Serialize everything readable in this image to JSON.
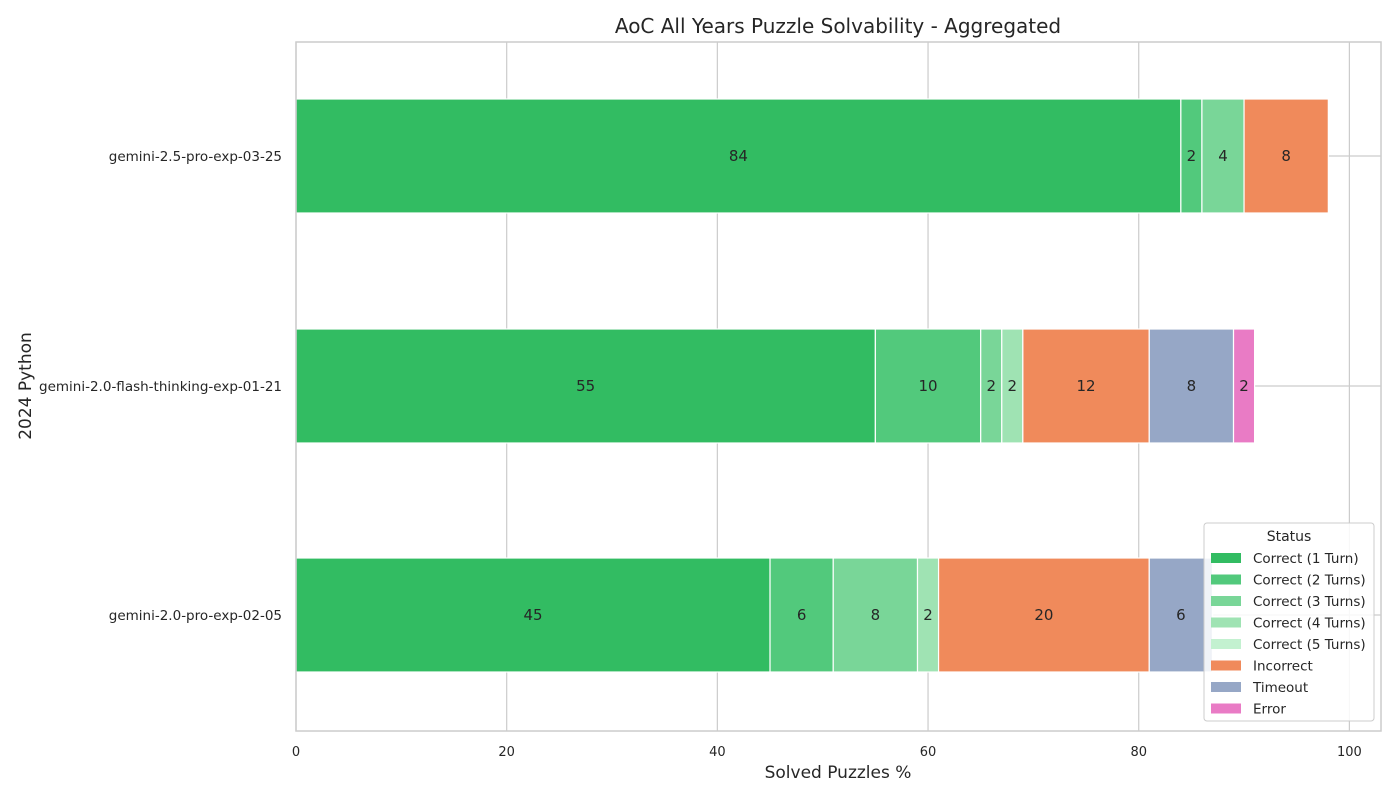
{
  "chart_data": {
    "type": "bar",
    "orientation": "horizontal",
    "stacked": true,
    "title": "AoC All Years Puzzle Solvability - Aggregated",
    "xlabel": "Solved Puzzles %",
    "ylabel": "2024 Python",
    "xlim": [
      0,
      103
    ],
    "xticks": [
      0,
      20,
      40,
      60,
      80,
      100
    ],
    "grid": true,
    "legend": {
      "title": "Status",
      "placement": "lower-right"
    },
    "categories": [
      "gemini-2.5-pro-exp-03-25",
      "gemini-2.0-flash-thinking-exp-01-21",
      "gemini-2.0-pro-exp-02-05"
    ],
    "series": [
      {
        "name": "Correct (1 Turn)",
        "color": "#32bc62",
        "values": [
          84,
          55,
          45
        ]
      },
      {
        "name": "Correct (2 Turns)",
        "color": "#52c97c",
        "values": [
          2,
          10,
          6
        ]
      },
      {
        "name": "Correct (3 Turns)",
        "color": "#79d698",
        "values": [
          4,
          2,
          8
        ]
      },
      {
        "name": "Correct (4 Turns)",
        "color": "#9fe3b3",
        "values": [
          0,
          2,
          2
        ]
      },
      {
        "name": "Correct (5 Turns)",
        "color": "#c3f1d0",
        "values": [
          0,
          0,
          0
        ]
      },
      {
        "name": "Incorrect",
        "color": "#f08a5b",
        "values": [
          8,
          12,
          20
        ]
      },
      {
        "name": "Timeout",
        "color": "#96a7c6",
        "values": [
          0,
          8,
          6
        ]
      },
      {
        "name": "Error",
        "color": "#e97bc5",
        "values": [
          0,
          2,
          0
        ]
      }
    ]
  }
}
